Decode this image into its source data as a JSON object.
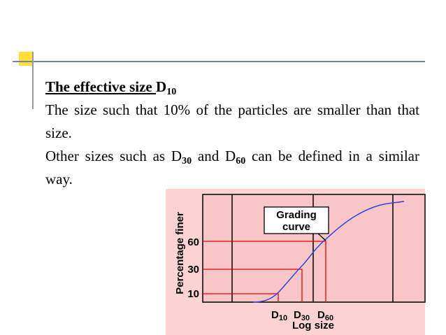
{
  "slide": {
    "heading": {
      "text": "The effective size ",
      "symbol": "D",
      "subscript": "10"
    },
    "definition": "The size such that 10% of the particles are smaller than that size.",
    "other_sizes": {
      "before": "Other sizes such as D",
      "sub_a": "30",
      "middle": " and D",
      "sub_b": "60",
      "after": " can be defined in a similar way."
    },
    "figure": {
      "y_axis_label": "Percentage finer",
      "y_ticks": [
        "60",
        "30",
        "10"
      ],
      "x_labels": [
        {
          "symbol": "D",
          "subscript": "10"
        },
        {
          "symbol": "D",
          "subscript": "30"
        },
        {
          "symbol": "D",
          "subscript": "60"
        }
      ],
      "x_axis_label": "Log size",
      "callout": [
        "Grading",
        "curve"
      ]
    }
  }
}
